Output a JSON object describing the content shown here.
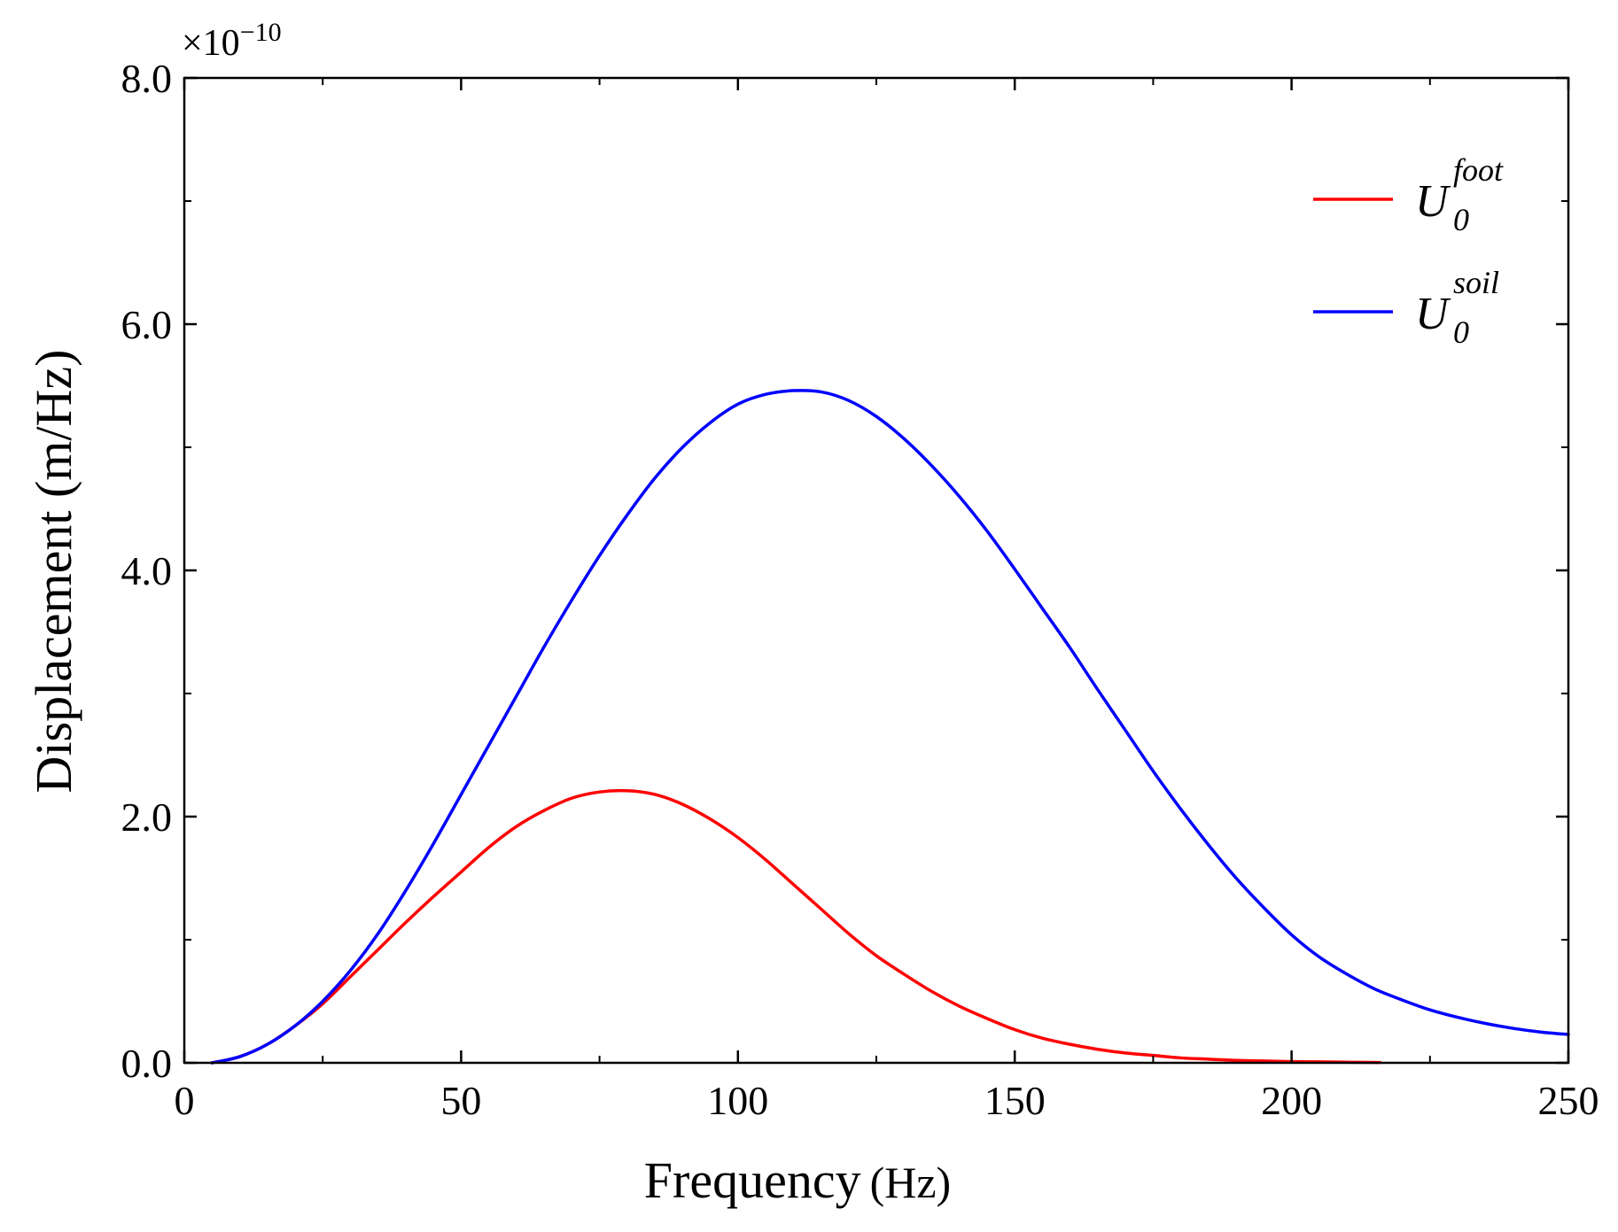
{
  "chart_data": {
    "type": "line",
    "title": "",
    "xlabel": "Frequency",
    "xlabel_unit": "(Hz)",
    "ylabel": "Displacement (m/Hz)",
    "y_multiplier": "×10",
    "y_multiplier_exponent": "−10",
    "xlim": [
      0,
      250
    ],
    "ylim": [
      0,
      8
    ],
    "xticks": [
      0,
      50,
      100,
      150,
      200,
      250
    ],
    "xtick_labels": [
      "0",
      "50",
      "100",
      "150",
      "200",
      "250"
    ],
    "yticks": [
      0,
      2,
      4,
      6,
      8
    ],
    "ytick_labels": [
      "0.0",
      "2.0",
      "4.0",
      "6.0",
      "8.0"
    ],
    "grid": false,
    "legend_position": "top-right",
    "series": [
      {
        "name": "U0^foot",
        "legend_base": "U",
        "legend_sup": "foot",
        "legend_sub": "0",
        "color": "#ff0000",
        "x": [
          5,
          10,
          15,
          20,
          25,
          30,
          35,
          40,
          45,
          50,
          55,
          60,
          65,
          70,
          75,
          80,
          85,
          90,
          95,
          100,
          105,
          110,
          115,
          120,
          125,
          130,
          135,
          140,
          145,
          150,
          155,
          160,
          165,
          170,
          175,
          180,
          185,
          190,
          195,
          200,
          205,
          210,
          216
        ],
        "y": [
          0.0,
          0.05,
          0.15,
          0.3,
          0.48,
          0.7,
          0.92,
          1.14,
          1.35,
          1.55,
          1.75,
          1.92,
          2.05,
          2.15,
          2.2,
          2.21,
          2.18,
          2.1,
          1.98,
          1.83,
          1.65,
          1.45,
          1.25,
          1.05,
          0.87,
          0.72,
          0.58,
          0.46,
          0.36,
          0.27,
          0.2,
          0.15,
          0.11,
          0.08,
          0.06,
          0.04,
          0.03,
          0.02,
          0.015,
          0.01,
          0.008,
          0.005,
          0.003
        ]
      },
      {
        "name": "U0^soil",
        "legend_base": "U",
        "legend_sup": "soil",
        "legend_sub": "0",
        "color": "#0000ff",
        "x": [
          5,
          10,
          15,
          20,
          25,
          30,
          35,
          40,
          45,
          50,
          55,
          60,
          65,
          70,
          75,
          80,
          85,
          90,
          95,
          100,
          105,
          110,
          115,
          120,
          125,
          130,
          135,
          140,
          145,
          150,
          155,
          160,
          165,
          170,
          175,
          180,
          185,
          190,
          195,
          200,
          205,
          210,
          215,
          220,
          225,
          230,
          235,
          240,
          245,
          250
        ],
        "y": [
          0.0,
          0.05,
          0.15,
          0.3,
          0.5,
          0.75,
          1.05,
          1.4,
          1.78,
          2.18,
          2.58,
          2.98,
          3.38,
          3.76,
          4.12,
          4.45,
          4.75,
          5.0,
          5.2,
          5.35,
          5.43,
          5.46,
          5.45,
          5.38,
          5.25,
          5.07,
          4.85,
          4.6,
          4.32,
          4.01,
          3.69,
          3.37,
          3.03,
          2.7,
          2.37,
          2.06,
          1.77,
          1.5,
          1.26,
          1.04,
          0.86,
          0.72,
          0.6,
          0.51,
          0.43,
          0.37,
          0.32,
          0.28,
          0.25,
          0.23
        ]
      }
    ]
  }
}
